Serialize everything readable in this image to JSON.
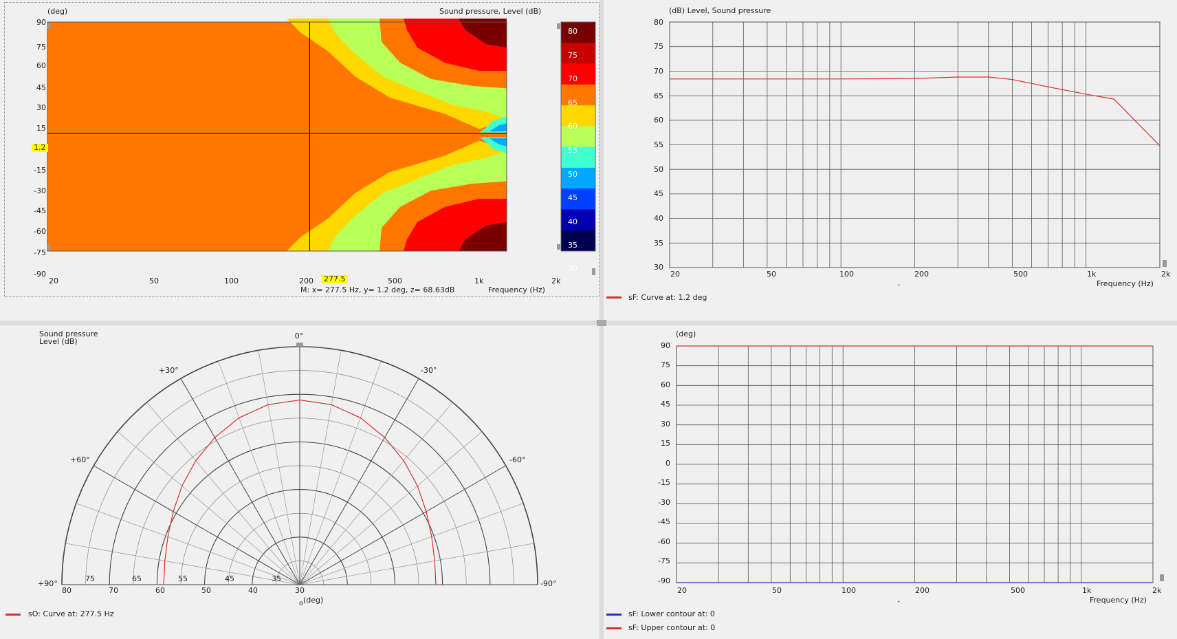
{
  "heatmap": {
    "y_unit": "(deg)",
    "title": "Sound pressure, Level  (dB)",
    "y_ticks": [
      "90",
      "75",
      "60",
      "45",
      "30",
      "15",
      "1.2",
      "-15",
      "-30",
      "-45",
      "-60",
      "-75",
      "-90"
    ],
    "x_ticks": [
      "20",
      "50",
      "100",
      "200",
      "277.5",
      "500",
      "1k",
      "2k"
    ],
    "colorbar_ticks": [
      "80",
      "75",
      "70",
      "65",
      "60",
      "55",
      "50",
      "45",
      "40",
      "35",
      "30"
    ],
    "colorbar_colors": [
      "#7a0000",
      "#c80000",
      "#ff0000",
      "#ff7700",
      "#ffd800",
      "#b8ff5a",
      "#40ffd0",
      "#00a8ff",
      "#0040ff",
      "#0000b0",
      "#000050"
    ],
    "cursor_freq": "277.5",
    "cursor_angle": "1.2",
    "readout": "M:  x= 277.5 Hz,  y= 1.2 deg, z= 68.63dB",
    "x_label": "Frequency  (Hz)"
  },
  "freq_panel": {
    "y_header": "(dB)  Level, Sound pressure",
    "x_label": "Frequency  (Hz)",
    "legend": "sF: Curve at: 1.2 deg",
    "legend_color": "#d83030"
  },
  "polar_panel": {
    "header_line1": "Sound pressure",
    "header_line2": "Level  (dB)",
    "angle_labels": [
      "0°",
      "+30°",
      "-30°",
      "+60°",
      "-60°",
      "+90°",
      "-90°"
    ],
    "radial_inner_labels": [
      "75",
      "65",
      "55",
      "45",
      "35"
    ],
    "radial_axis_labels": [
      "80",
      "70",
      "60",
      "50",
      "40",
      "30"
    ],
    "axis_unit": "(deg)",
    "legend": "sO: Curve at: 277.5 Hz",
    "legend_color": "#d83030"
  },
  "contour_panel": {
    "y_header": "(deg)",
    "x_label": "Frequency  (Hz)",
    "legend_lower": "sF: Lower contour at: 0",
    "legend_upper": "sF: Upper contour at: 0",
    "legend_lower_color": "#2030d0",
    "legend_upper_color": "#d83030"
  },
  "chart_data": [
    {
      "type": "heatmap",
      "title": "Sound pressure, Level  (dB)",
      "xlabel": "Frequency  (Hz)",
      "ylabel": "(deg)",
      "x_scale": "log",
      "xlim": [
        20,
        2000
      ],
      "ylim": [
        -90,
        90
      ],
      "zlim": [
        30,
        80
      ],
      "colorbar_levels": [
        30,
        35,
        40,
        45,
        50,
        55,
        60,
        65,
        70,
        75,
        80
      ],
      "cursor": {
        "x": 277.5,
        "y": 1.2,
        "z": 68.63
      }
    },
    {
      "type": "line",
      "title": "(dB)  Level, Sound pressure",
      "xlabel": "Frequency  (Hz)",
      "x_scale": "log",
      "xlim": [
        20,
        2000
      ],
      "ylim": [
        30,
        80
      ],
      "x_ticks": [
        20,
        50,
        100,
        200,
        500,
        1000,
        2000
      ],
      "y_ticks": [
        30,
        35,
        40,
        45,
        50,
        55,
        60,
        65,
        70,
        75,
        80
      ],
      "series": [
        {
          "name": "sF: Curve at: 1.2 deg",
          "x": [
            20,
            100,
            200,
            300,
            400,
            500,
            700,
            1000,
            1300,
            2000
          ],
          "y": [
            68.4,
            68.4,
            68.5,
            68.8,
            68.8,
            68.3,
            66.8,
            65.3,
            64.3,
            54.8
          ]
        }
      ]
    },
    {
      "type": "polar",
      "title": "Sound pressure Level  (dB)",
      "angle_range": [
        -90,
        90
      ],
      "r_range": [
        30,
        80
      ],
      "series": [
        {
          "name": "sO: Curve at: 277.5 Hz",
          "angle": [
            -90,
            -80,
            -70,
            -60,
            -50,
            -40,
            -30,
            -20,
            -10,
            0,
            10,
            20,
            30,
            40,
            50,
            60,
            70,
            80,
            90
          ],
          "r": [
            58.6,
            58.8,
            59.5,
            60.7,
            62.3,
            64.0,
            65.7,
            67.3,
            68.4,
            68.8,
            68.4,
            67.3,
            65.7,
            64.0,
            62.3,
            60.7,
            59.5,
            58.8,
            58.6
          ]
        }
      ]
    },
    {
      "type": "line",
      "title": "(deg)",
      "xlabel": "Frequency  (Hz)",
      "x_scale": "log",
      "xlim": [
        20,
        2000
      ],
      "ylim": [
        -90,
        90
      ],
      "x_ticks": [
        20,
        50,
        100,
        200,
        500,
        1000,
        2000
      ],
      "y_ticks": [
        90,
        75,
        60,
        45,
        30,
        15,
        0,
        -15,
        -30,
        -45,
        -60,
        -75,
        -90
      ],
      "series": [
        {
          "name": "sF: Lower contour at: 0",
          "x": [
            20,
            2000
          ],
          "y": [
            -90,
            -90
          ]
        },
        {
          "name": "sF: Upper contour at: 0",
          "x": [
            20,
            2000
          ],
          "y": [
            90,
            90
          ]
        }
      ]
    }
  ]
}
